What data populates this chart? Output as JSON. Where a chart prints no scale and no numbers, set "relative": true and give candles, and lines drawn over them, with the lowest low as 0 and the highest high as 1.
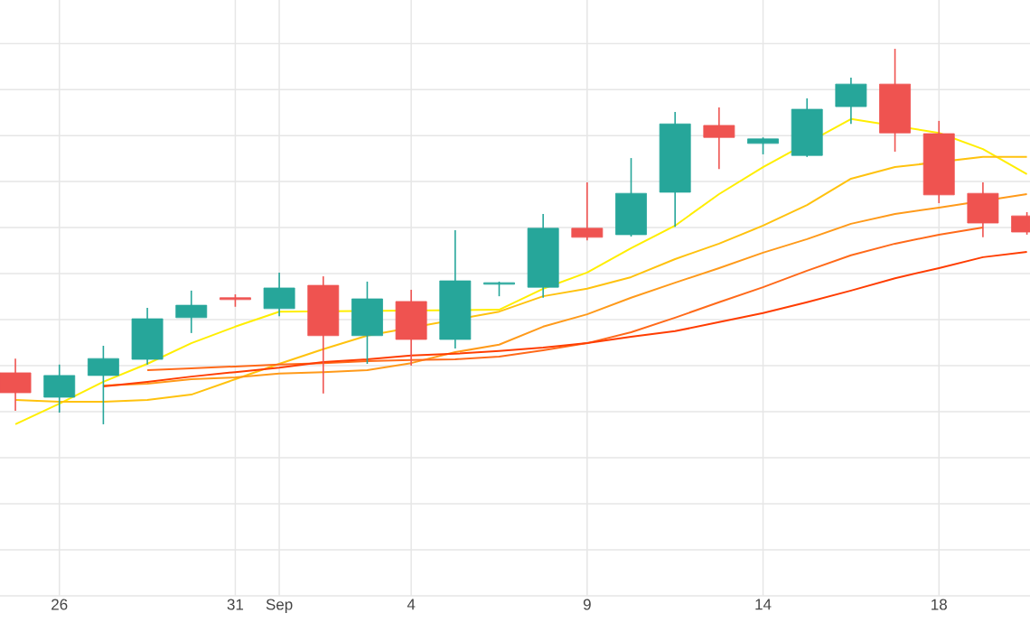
{
  "chart_data": {
    "type": "candlestick",
    "relative": true,
    "grid": true,
    "categories": [
      null,
      "26",
      null,
      null,
      null,
      "31",
      "Sep",
      null,
      null,
      "4",
      null,
      null,
      null,
      "9",
      null,
      null,
      null,
      "14",
      null,
      null,
      null,
      "18",
      null,
      null
    ],
    "ohlc": [
      [
        0.137,
        0.175,
        0.036,
        0.084
      ],
      [
        0.072,
        0.159,
        0.031,
        0.13
      ],
      [
        0.13,
        0.209,
        0,
        0.175
      ],
      [
        0.173,
        0.31,
        0.159,
        0.281
      ],
      [
        0.284,
        0.356,
        0.243,
        0.317
      ],
      [
        0.337,
        0.346,
        0.313,
        0.332
      ],
      [
        0.308,
        0.404,
        0.288,
        0.363
      ],
      [
        0.37,
        0.394,
        0.082,
        0.236
      ],
      [
        0.236,
        0.38,
        0.161,
        0.334
      ],
      [
        0.327,
        0.358,
        0.156,
        0.226
      ],
      [
        0.226,
        0.517,
        0.202,
        0.382
      ],
      [
        0.373,
        0.38,
        0.341,
        0.377
      ],
      [
        0.365,
        0.56,
        0.337,
        0.522
      ],
      [
        0.522,
        0.644,
        0.49,
        0.498
      ],
      [
        0.505,
        0.709,
        0.5,
        0.615
      ],
      [
        0.618,
        0.832,
        0.526,
        0.8
      ],
      [
        0.796,
        0.844,
        0.68,
        0.764
      ],
      [
        0.748,
        0.764,
        0.719,
        0.76
      ],
      [
        0.716,
        0.868,
        0.712,
        0.839
      ],
      [
        0.846,
        0.923,
        0.8,
        0.906
      ],
      [
        0.906,
        1,
        0.726,
        0.776
      ],
      [
        0.774,
        0.808,
        0.589,
        0.611
      ],
      [
        0.615,
        0.644,
        0.498,
        0.536
      ],
      [
        0.555,
        0.565,
        0.505,
        0.512
      ]
    ],
    "colors": [
      "#ef5350",
      "#26a69a",
      "#26a69a",
      "#26a69a",
      "#26a69a",
      "#ef5350",
      "#26a69a",
      "#ef5350",
      "#26a69a",
      "#ef5350",
      "#26a69a",
      "#26a69a",
      "#26a69a",
      "#ef5350",
      "#26a69a",
      "#26a69a",
      "#ef5350",
      "#26a69a",
      "#26a69a",
      "#26a69a",
      "#ef5350",
      "#ef5350",
      "#ef5350",
      "#ef5350"
    ],
    "series": [
      {
        "type": "line",
        "color": "#ffee00",
        "values": [
          0,
          0.055,
          0.113,
          0.161,
          0.216,
          0.26,
          0.3,
          null,
          null,
          null,
          null,
          0.305,
          0.361,
          0.404,
          0.469,
          0.529,
          0.613,
          0.685,
          null,
          0.813,
          null,
          0.776,
          0.733,
          0.666
        ]
      },
      {
        "type": "line",
        "color": "#ffc20e",
        "values": [
          0.065,
          0.06,
          0.06,
          0.065,
          0.079,
          0.12,
          0.161,
          0.2,
          0.236,
          null,
          null,
          0.3,
          0.341,
          0.361,
          0.392,
          0.44,
          0.481,
          0.529,
          0.584,
          0.654,
          0.685,
          null,
          0.712,
          0.712
        ]
      },
      {
        "type": "line",
        "color": "#ff9a1a",
        "values": [
          null,
          null,
          0.103,
          0.108,
          0.12,
          0.125,
          0.135,
          0.139,
          0.144,
          0.163,
          0.192,
          0.212,
          0.26,
          0.293,
          0.337,
          0.377,
          0.416,
          0.457,
          0.493,
          0.534,
          0.56,
          0.577,
          null,
          0.613
        ]
      },
      {
        "type": "line",
        "color": "#ff6a1a",
        "values": [
          null,
          null,
          null,
          0.144,
          0.149,
          0.154,
          0.159,
          0.163,
          0.168,
          0.171,
          0.173,
          0.18,
          0.197,
          0.216,
          0.245,
          0.284,
          0.325,
          0.365,
          0.409,
          0.45,
          0.481,
          0.505,
          0.524,
          null
        ]
      },
      {
        "type": "line",
        "color": "#ff3d00",
        "values": [
          null,
          null,
          0.101,
          0.113,
          0.127,
          0.139,
          0.151,
          0.166,
          0.173,
          0.183,
          0.188,
          0.195,
          0.204,
          0.216,
          0.233,
          0.248,
          0.272,
          0.296,
          0.325,
          0.356,
          0.389,
          0.416,
          0.445,
          0.459
        ]
      }
    ]
  }
}
